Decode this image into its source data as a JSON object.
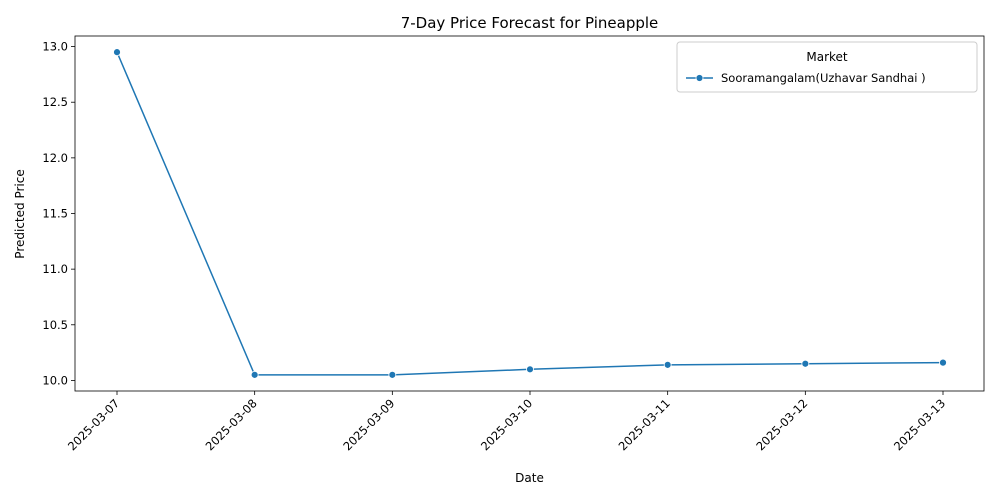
{
  "chart_data": {
    "type": "line",
    "title": "7-Day Price Forecast for Pineapple",
    "xlabel": "Date",
    "ylabel": "Predicted Price",
    "categories": [
      "2025-03-07",
      "2025-03-08",
      "2025-03-09",
      "2025-03-10",
      "2025-03-11",
      "2025-03-12",
      "2025-03-13"
    ],
    "series": [
      {
        "name": "Sooramangalam(Uzhavar Sandhai )",
        "values": [
          12.95,
          10.05,
          10.05,
          10.1,
          10.14,
          10.15,
          10.16
        ],
        "color": "#1f77b4",
        "marker": "circle"
      }
    ],
    "y_ticks": [
      10.0,
      10.5,
      11.0,
      11.5,
      12.0,
      12.5,
      13.0
    ],
    "y_tick_labels": [
      "10.0",
      "10.5",
      "11.0",
      "11.5",
      "12.0",
      "12.5",
      "13.0"
    ],
    "ylim": [
      9.905,
      13.095
    ],
    "legend": {
      "title": "Market",
      "placement": "top-right"
    },
    "grid": false
  }
}
